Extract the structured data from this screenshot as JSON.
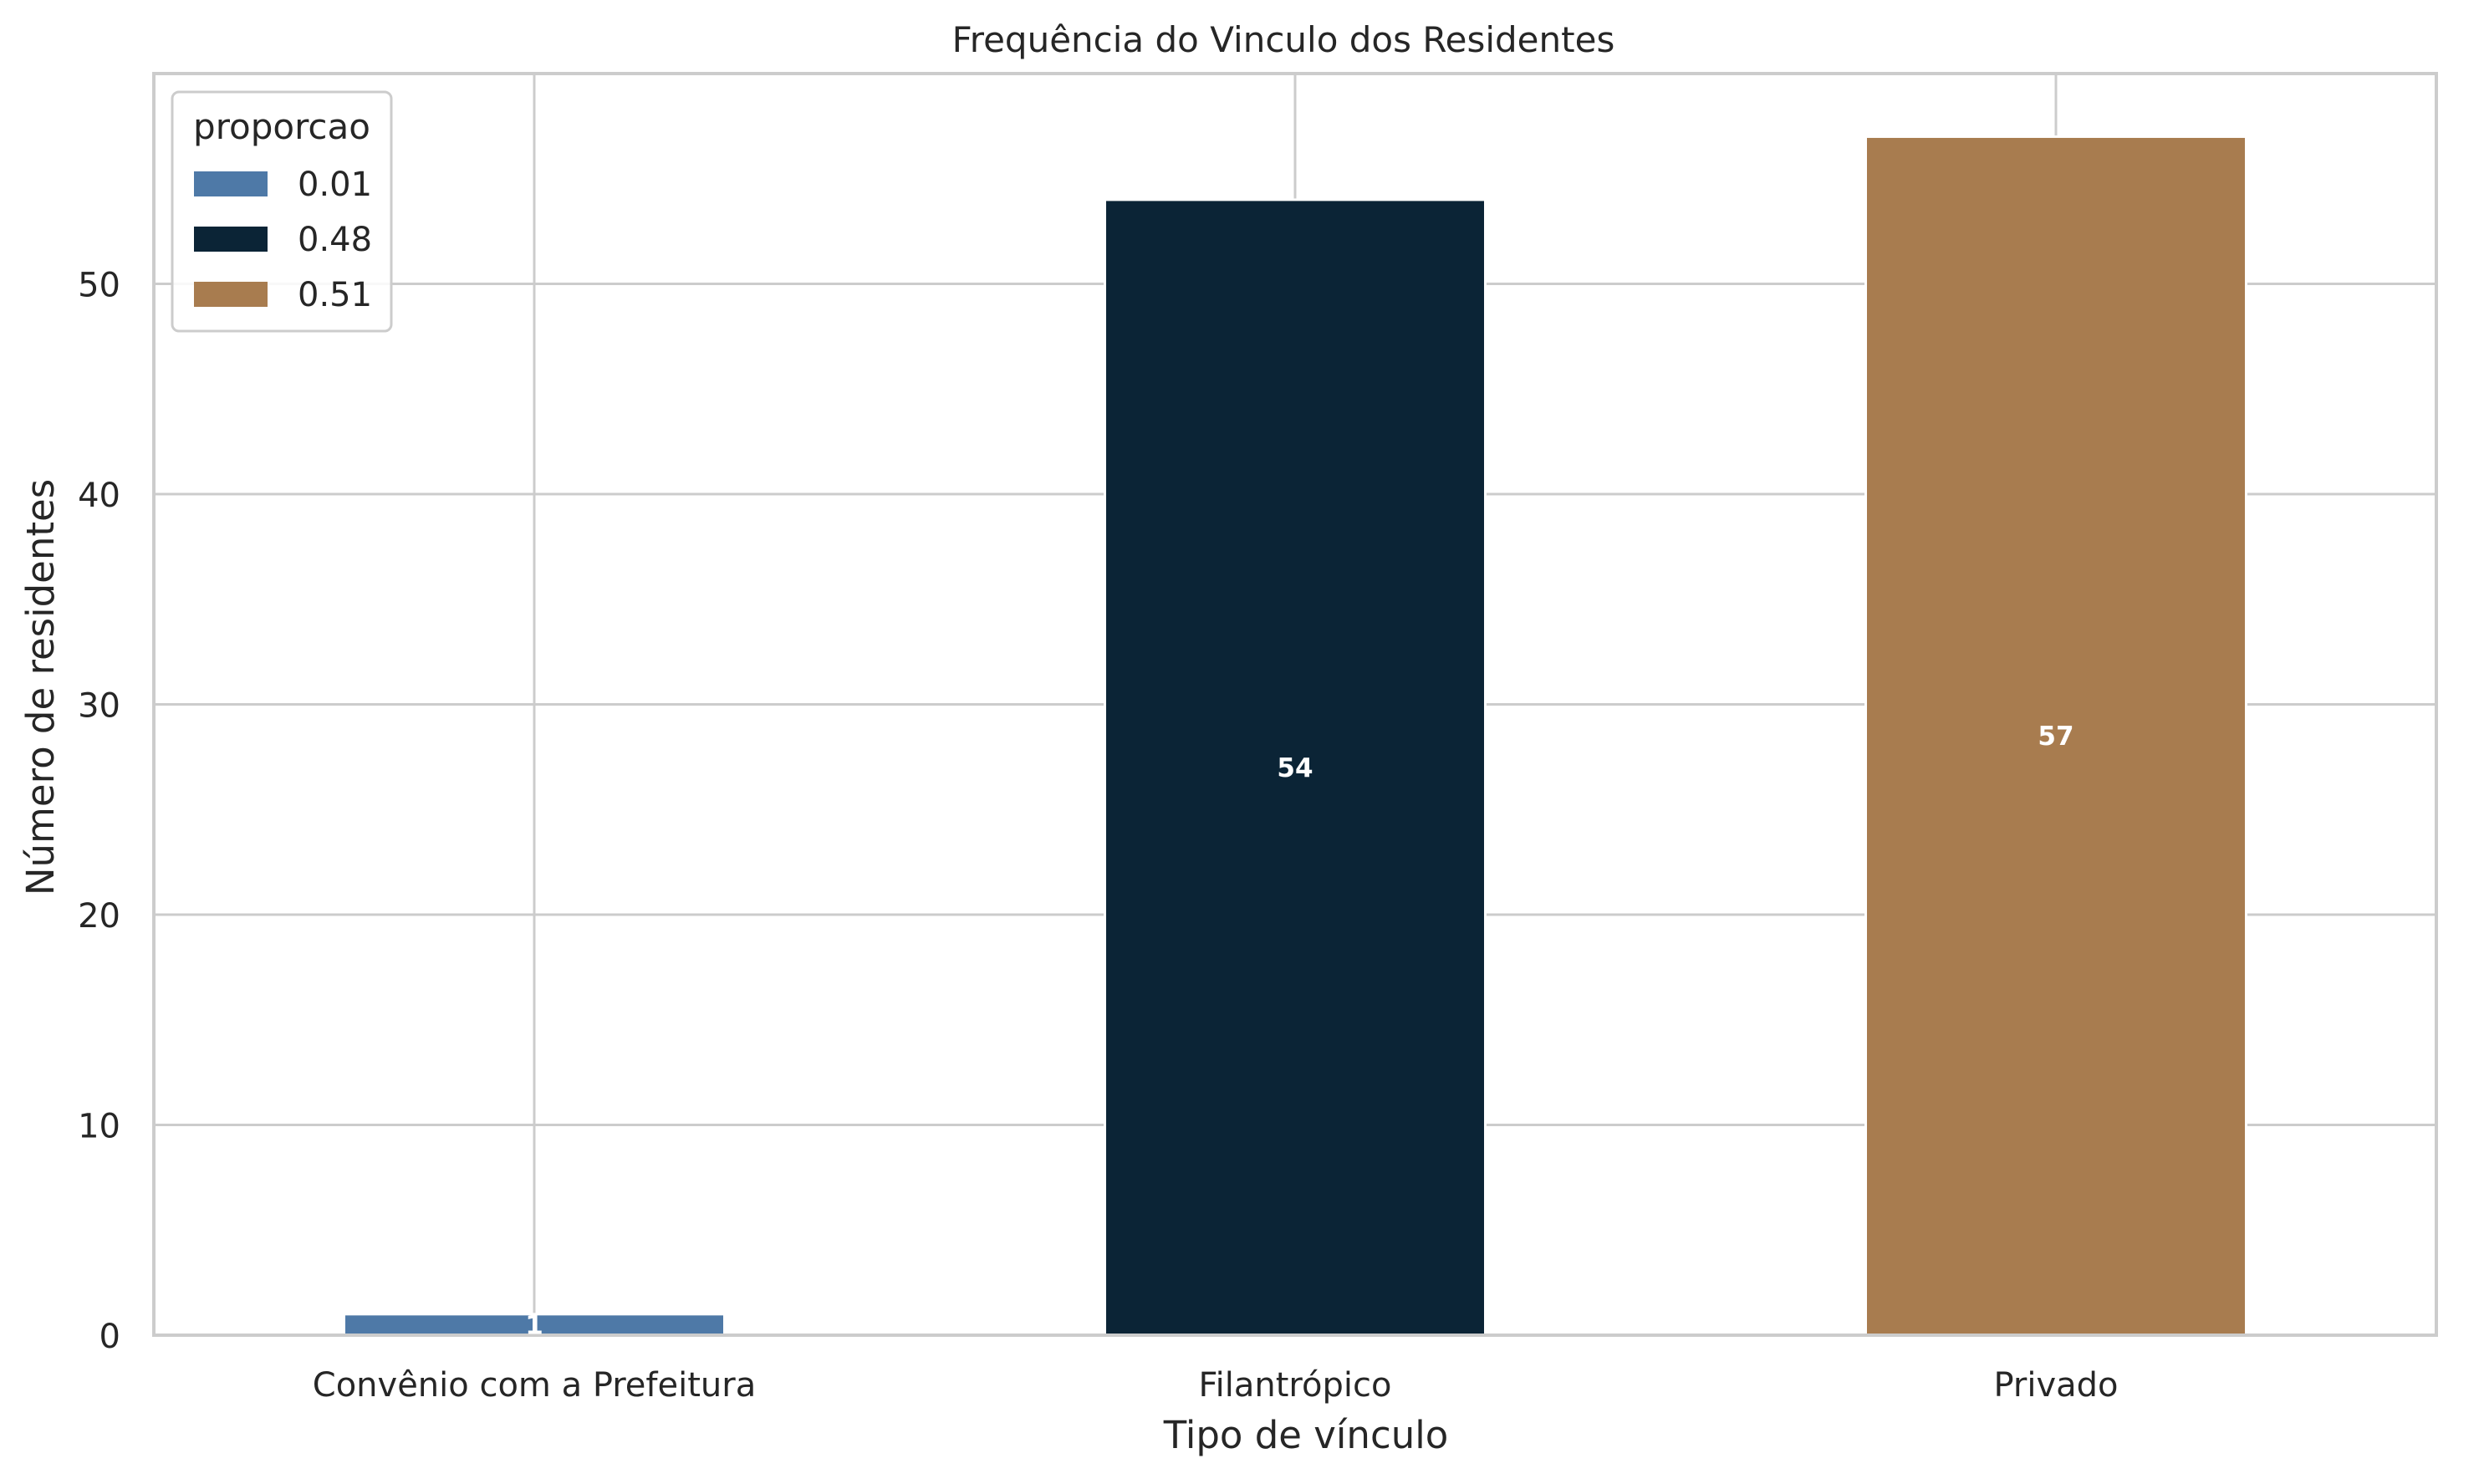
{
  "chart_data": {
    "type": "bar",
    "title": "Frequência do Vinculo dos Residentes",
    "xlabel": "Tipo de vínculo",
    "ylabel": "Número de residentes",
    "categories": [
      "Convênio com a Prefeitura",
      "Filantrópico",
      "Privado"
    ],
    "values": [
      1,
      54,
      57
    ],
    "data_labels": [
      "1",
      "54",
      "57"
    ],
    "colors": [
      "#4e79a7",
      "#0b2436",
      "#a87c4f"
    ],
    "ylim": [
      0,
      60
    ],
    "yticks": [
      0,
      10,
      20,
      30,
      40,
      50
    ],
    "grid": true,
    "legend": {
      "title": "proporcao",
      "placement": "top-left",
      "entries": [
        {
          "label": "0.01",
          "color": "#4e79a7"
        },
        {
          "label": "0.48",
          "color": "#0b2436"
        },
        {
          "label": "0.51",
          "color": "#a87c4f"
        }
      ]
    }
  }
}
